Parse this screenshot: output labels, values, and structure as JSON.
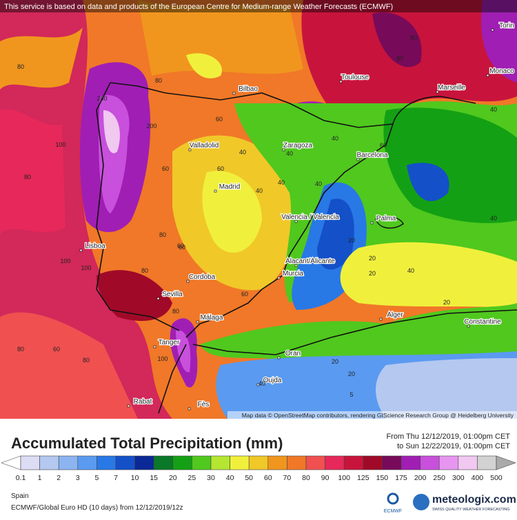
{
  "notice": "This service is based on data and products of the European Centre for Medium-range Weather Forecasts (ECMWF)",
  "attribution": "Map data © OpenStreetMap contributors, rendering GIScience Research Group @ Heidelberg University",
  "cities": [
    "Bilbao",
    "Toulouse",
    "Marseille",
    "Monaco",
    "Torin",
    "Valladolid",
    "Zaragoza",
    "Barcelona",
    "Madrid",
    "Valencia / Valencia",
    "Palma",
    "Lisboa",
    "Alacant/Alicante",
    "Murcia",
    "Cordoba",
    "Sevilla",
    "Málaga",
    "Alger",
    "Constantine",
    "Tanger",
    "Oran",
    "Oujda",
    "Rabat",
    "Fès"
  ],
  "contour_labels": [
    "80",
    "80",
    "100",
    "200",
    "200",
    "80",
    "60",
    "40",
    "40",
    "40",
    "60",
    "40",
    "40",
    "40",
    "60",
    "80",
    "80",
    "60",
    "20",
    "20",
    "40",
    "20",
    "100",
    "100",
    "80",
    "60",
    "80",
    "80",
    "60",
    "20",
    "20",
    "5",
    "20",
    "40",
    "60",
    "80",
    "100",
    "80",
    "40",
    "40",
    "60"
  ],
  "title": "Accumulated Total Precipitation (mm)",
  "period_from": "From Thu 12/12/2019, 01:00pm CET",
  "period_to": "to Sun 12/22/2019, 01:00pm CET",
  "legend": {
    "labels": [
      0.1,
      1,
      2,
      3,
      5,
      7,
      10,
      15,
      20,
      25,
      30,
      40,
      50,
      60,
      70,
      80,
      90,
      100,
      125,
      150,
      175,
      200,
      250,
      300,
      400,
      500
    ],
    "colors": [
      "#ffffff",
      "#dcdcf5",
      "#b4c8f0",
      "#8cb4f0",
      "#5a9af0",
      "#2878e6",
      "#1450c8",
      "#0a2896",
      "#0a7828",
      "#14a014",
      "#50c81e",
      "#b4e632",
      "#f0f03c",
      "#f0c828",
      "#f0961e",
      "#f07828",
      "#f05050",
      "#e6285a",
      "#c8143c",
      "#a00a28",
      "#780a5a",
      "#a01eb4",
      "#c850dc",
      "#e696f0",
      "#f0c8f0",
      "#d2d2d2",
      "#aaaaaa"
    ]
  },
  "region": "Spain",
  "model": "ECMWF/Global Euro HD (10 days)  from  12/12/2019/12z",
  "ecmwf_logo": "ECMWF",
  "brand": "meteologix.com",
  "brand_tagline": "SWISS QUALITY WEATHER FORECASTING"
}
